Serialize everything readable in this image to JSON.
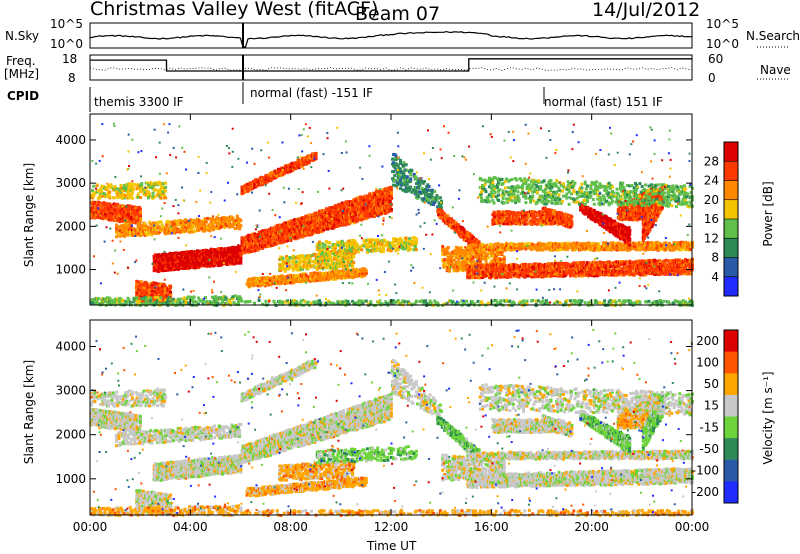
{
  "header": {
    "station": "Christmas Valley West (fitACF)",
    "beam": "Beam 07",
    "date": "14/Jul/2012"
  },
  "panels": {
    "nsky": {
      "label": "N.Sky",
      "ticks": [
        "10^5",
        "10^0"
      ],
      "right_ticks": [
        "10^5",
        "10^0"
      ],
      "right_label": "N.Search"
    },
    "freq": {
      "label_line1": "Freq.",
      "label_line2": "[MHz]",
      "ticks": [
        "18",
        "8"
      ],
      "right_ticks": [
        "60",
        "0"
      ],
      "right_label": "Nave"
    },
    "cpid": {
      "label": "CPID",
      "modes": [
        "themis 3300 IF",
        "normal (fast) -151 IF",
        "normal (fast) 151 IF"
      ]
    }
  },
  "chart_data": [
    {
      "type": "heatmap",
      "name": "power-panel",
      "ylabel": "Slant Range [km]",
      "ylim": [
        180,
        4600
      ],
      "yticks": [
        "1000",
        "2000",
        "3000",
        "4000"
      ],
      "colorbar": {
        "label": "Power [dB]",
        "ticks": [
          "4",
          "8",
          "12",
          "16",
          "20",
          "24",
          "28"
        ],
        "range": [
          0,
          30
        ],
        "colors": [
          "#1f2bff",
          "#2a5aa8",
          "#2e8b57",
          "#5fbf4a",
          "#f5c400",
          "#ff8800",
          "#ff3a00",
          "#dd0000"
        ]
      }
    },
    {
      "type": "heatmap",
      "name": "velocity-panel",
      "ylabel": "Slant Range [km]",
      "ylim": [
        180,
        4600
      ],
      "yticks": [
        "1000",
        "2000",
        "3000",
        "4000"
      ],
      "colorbar": {
        "label": "Velocity [m s⁻¹]",
        "ticks": [
          "200",
          "100",
          "50",
          "15",
          "-15",
          "-50",
          "-100",
          "-200"
        ],
        "colors": [
          "#1f2bff",
          "#2a5aa8",
          "#2e8b57",
          "#6cd43a",
          "#c8c8c8",
          "#ffa500",
          "#ff5500",
          "#dd0000"
        ]
      }
    }
  ],
  "xaxis": {
    "label": "Time UT",
    "ticks": [
      "00:00",
      "04:00",
      "08:00",
      "12:00",
      "16:00",
      "20:00",
      "00:00"
    ]
  }
}
